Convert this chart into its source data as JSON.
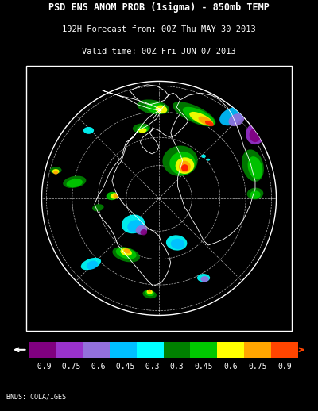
{
  "title_line1": "PSD ENS ANOM PROB (1sigma) - 850mb TEMP",
  "title_line2": "192H Forecast from: 00Z Thu MAY 30 2013",
  "title_line3": "Valid time: 00Z Fri JUN 07 2013",
  "credit_text": "BNDS: COLA/IGES",
  "background_color": "#000000",
  "colorbar_colors": [
    "#800080",
    "#9932CC",
    "#9370DB",
    "#00BFFF",
    "#00FFFF",
    "#008000",
    "#00C800",
    "#FFFF00",
    "#FFA500",
    "#FF4500"
  ],
  "colorbar_labels": [
    "-0.9",
    "-0.75",
    "-0.6",
    "-0.45",
    "-0.3",
    "0.3",
    "0.45",
    "0.6",
    "0.75",
    "0.9"
  ],
  "title_fontsize": 8.5,
  "subtitle_fontsize": 7.5,
  "label_fontsize": 7.0,
  "credit_fontsize": 6.0
}
